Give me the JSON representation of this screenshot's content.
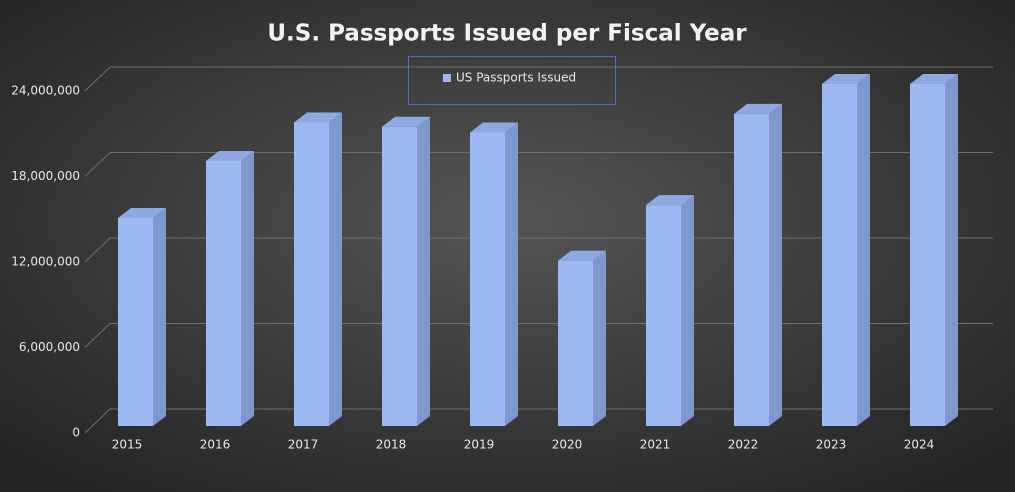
{
  "chart_data": {
    "type": "bar3d",
    "title": "U.S. Passports Issued per Fiscal Year",
    "categories": [
      "2015",
      "2016",
      "2017",
      "2018",
      "2019",
      "2020",
      "2021",
      "2022",
      "2023",
      "2024"
    ],
    "series": [
      {
        "name": "US Passports Issued",
        "color": "#9db8f2",
        "values": [
          14600000,
          18600000,
          21300000,
          21000000,
          20600000,
          11600000,
          15500000,
          21900000,
          24000000,
          24000000
        ]
      }
    ],
    "ylim": [
      0,
      24000000
    ],
    "yticks": [
      0,
      {
        "value": 6000000,
        "label": "6,000,000"
      },
      {
        "value": 12000000,
        "label": "12,000,000"
      },
      {
        "value": 18000000,
        "label": "18,000,000"
      },
      {
        "value": 24000000,
        "label": "24,000,000"
      }
    ],
    "grid": true
  }
}
